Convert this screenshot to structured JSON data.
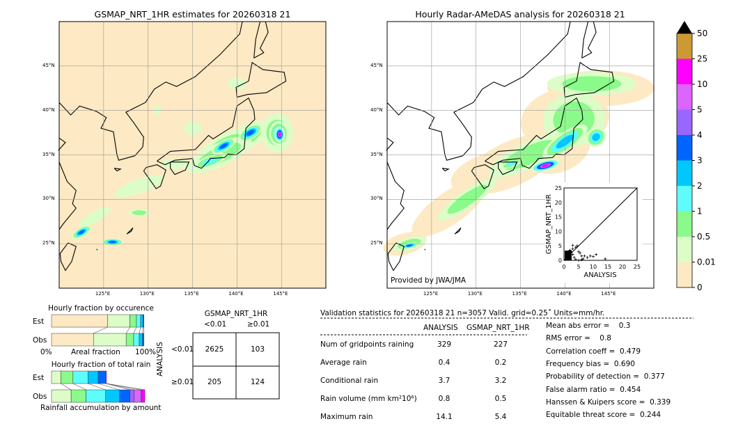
{
  "left_map": {
    "title": "GSMAP_NRT_1HR estimates for 20260318 21"
  },
  "right_map": {
    "title": "Hourly Radar-AMeDAS analysis for 20260318 21",
    "credit": "Provided by JWA/JMA"
  },
  "lon_ticks": [
    "125°E",
    "130°E",
    "135°E",
    "140°E",
    "145°E"
  ],
  "lat_ticks": [
    "45°N",
    "40°N",
    "35°N",
    "30°N",
    "25°N"
  ],
  "colorbar": {
    "levels": [
      "0",
      "0.01",
      "0.5",
      "1",
      "2",
      "3",
      "4",
      "5",
      "10",
      "25",
      "50"
    ],
    "colors": [
      "#fde9c3",
      "#dcfdc8",
      "#8afa8a",
      "#5ffcfc",
      "#00c8ff",
      "#0064ff",
      "#9966ff",
      "#dc64ff",
      "#ff00ff",
      "#cc9933"
    ],
    "extend_color": "#000000"
  },
  "chart_data": [
    {
      "type": "scatter",
      "title": "",
      "xlabel": "ANALYSIS",
      "ylabel": "GSMAP_NRT_1HR",
      "xlim": [
        0,
        25
      ],
      "ylim": [
        0,
        25
      ],
      "xticks": [
        "0",
        "5",
        "10",
        "15",
        "20",
        "25"
      ],
      "yticks": [
        "0",
        "5",
        "10",
        "15",
        "20",
        "25"
      ],
      "points": [
        [
          0.5,
          0.3
        ],
        [
          1,
          1
        ],
        [
          1.5,
          2
        ],
        [
          2,
          1
        ],
        [
          2.5,
          3
        ],
        [
          3,
          2
        ],
        [
          3,
          4
        ],
        [
          3.5,
          1
        ],
        [
          4,
          4.5
        ],
        [
          4.5,
          5
        ],
        [
          5,
          3
        ],
        [
          5.5,
          2.5
        ],
        [
          6,
          1.5
        ],
        [
          6.5,
          0.5
        ],
        [
          7,
          1.5
        ],
        [
          8,
          1
        ],
        [
          9,
          1.5
        ],
        [
          10,
          1.3
        ],
        [
          11,
          2
        ],
        [
          14.1,
          0.5
        ],
        [
          3,
          5.2
        ],
        [
          2,
          3.5
        ],
        [
          1,
          2.5
        ],
        [
          4,
          0.3
        ],
        [
          5,
          0
        ],
        [
          6,
          0.2
        ]
      ]
    },
    {
      "type": "bar",
      "title": "Hourly fraction by occurence",
      "xlabel": "Areal fraction",
      "xticks": [
        "0%",
        "100%"
      ],
      "categories": [
        "Est",
        "Obs"
      ],
      "series": [
        {
          "values": [
            0.6,
            0.45
          ]
        },
        {
          "values": [
            0.24,
            0.35
          ]
        },
        {
          "values": [
            0.07,
            0.08
          ]
        },
        {
          "values": [
            0.045,
            0.06
          ]
        },
        {
          "values": [
            0.025,
            0.035
          ]
        },
        {
          "values": [
            0.01,
            0.015
          ]
        }
      ]
    },
    {
      "type": "bar",
      "title": "Hourly fraction of total rain",
      "xlabel": "Rainfall accumulation by amount",
      "categories": [
        "Est",
        "Obs"
      ],
      "series": [
        {
          "values": [
            0.1,
            0.21
          ]
        },
        {
          "values": [
            0.13,
            0.16
          ]
        },
        {
          "values": [
            0.16,
            0.21
          ]
        },
        {
          "values": [
            0.11,
            0.15
          ]
        },
        {
          "values": [
            0.08,
            0.11
          ]
        },
        {
          "values": [
            0.01,
            0.045
          ]
        },
        {
          "values": [
            0,
            0.075
          ]
        },
        {
          "values": [
            0,
            0.04
          ]
        }
      ]
    }
  ],
  "contingency": {
    "title": "GSMAP_NRT_1HR",
    "col_labels": [
      "<0.01",
      "≥0.01"
    ],
    "row_title": "ANALYSIS",
    "row_labels": [
      "<0.01",
      "≥0.01"
    ],
    "cells": [
      [
        "2625",
        "103"
      ],
      [
        "205",
        "124"
      ]
    ]
  },
  "validation": {
    "header": "Validation statistics for 20260318 21  n=3057 Valid. grid=0.25˚ Units=mm/hr.",
    "col_headers": [
      "ANALYSIS",
      "GSMAP_NRT_1HR"
    ],
    "rows": [
      {
        "label": "Num of gridpoints raining",
        "a": "329",
        "g": "227"
      },
      {
        "label": "Average rain",
        "a": "0.4",
        "g": "0.2"
      },
      {
        "label": "Conditional rain",
        "a": "3.7",
        "g": "3.2"
      },
      {
        "label": "Rain volume (mm km²10⁶)",
        "a": "0.8",
        "g": "0.5"
      },
      {
        "label": "Maximum rain",
        "a": "14.1",
        "g": "5.4"
      }
    ],
    "scores": [
      "Mean abs error =    0.3",
      "RMS error =    0.8",
      "Correlation coeff =  0.479",
      "Frequency bias =  0.690",
      "Probability of detection =  0.377",
      "False alarm ratio =  0.454",
      "Hanssen & Kuipers score =  0.339",
      "Equitable threat score =  0.244"
    ]
  }
}
